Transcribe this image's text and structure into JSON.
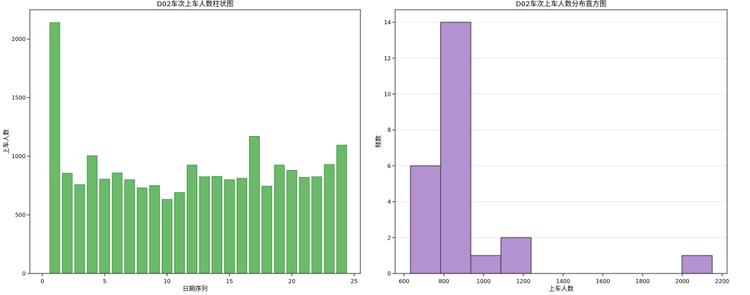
{
  "chart_data": [
    {
      "type": "bar",
      "title": "D02车次上车人数柱状图",
      "xlabel": "日期序列",
      "ylabel": "上车人数",
      "x": [
        1,
        2,
        3,
        4,
        5,
        6,
        7,
        8,
        9,
        10,
        11,
        12,
        13,
        14,
        15,
        16,
        17,
        18,
        19,
        20,
        21,
        22,
        23,
        24
      ],
      "values": [
        2140,
        855,
        758,
        1005,
        805,
        858,
        800,
        730,
        750,
        632,
        690,
        925,
        825,
        828,
        800,
        812,
        1170,
        745,
        925,
        880,
        820,
        825,
        930,
        1095
      ],
      "xlim": [
        -1,
        25.5
      ],
      "ylim": [
        0,
        2250
      ],
      "xticks": [
        0,
        5,
        10,
        15,
        20,
        25
      ],
      "yticks": [
        0,
        500,
        1000,
        1500,
        2000
      ],
      "grid": false,
      "color": "#6aba6a",
      "edge_color": "#3a8a3a"
    },
    {
      "type": "histogram",
      "title": "D02车次上车人数分布直方图",
      "xlabel": "上车人数",
      "ylabel": "频数",
      "bins": [
        632,
        783.8,
        935.6,
        1087.4,
        1239.2,
        1391,
        1542.8,
        1694.6,
        1846.4,
        1998.2,
        2150
      ],
      "counts": [
        6,
        14,
        1,
        2,
        0,
        0,
        0,
        0,
        0,
        1
      ],
      "xlim": [
        555,
        2225
      ],
      "ylim": [
        0,
        14.7
      ],
      "xticks": [
        600,
        800,
        1000,
        1200,
        1400,
        1600,
        1800,
        2000,
        2200
      ],
      "yticks": [
        0,
        2,
        4,
        6,
        8,
        10,
        12,
        14
      ],
      "grid": "y",
      "color": "#b292d0",
      "edge_color": "#5a3f5e"
    }
  ]
}
